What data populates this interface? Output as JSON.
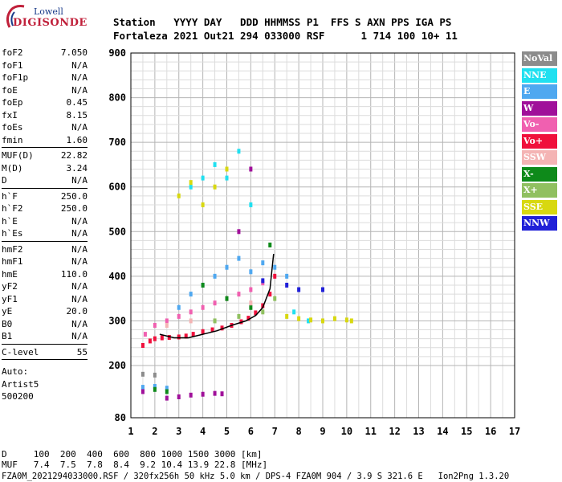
{
  "header": {
    "line1": "Station   YYYY DAY   DDD HHMMSS P1  FFS S AXN PPS IGA PS",
    "line2": "Fortaleza 2021 Out21 294 033000 RSF      1 714 100 10+ 11"
  },
  "logo": {
    "top": "Lowell",
    "bottom": "DIGISONDE"
  },
  "params_block1": [
    {
      "k": "foF2",
      "v": "7.050"
    },
    {
      "k": "foF1",
      "v": "N/A"
    },
    {
      "k": "foF1p",
      "v": "N/A"
    },
    {
      "k": "foE",
      "v": "N/A"
    },
    {
      "k": "foEp",
      "v": "0.45"
    },
    {
      "k": "fxI",
      "v": "8.15"
    },
    {
      "k": "foEs",
      "v": "N/A"
    },
    {
      "k": "fmin",
      "v": "1.60"
    }
  ],
  "params_block2": [
    {
      "k": "MUF(D)",
      "v": "22.82"
    },
    {
      "k": "M(D)",
      "v": "3.24"
    },
    {
      "k": "D",
      "v": "N/A"
    }
  ],
  "params_block3": [
    {
      "k": "h`F",
      "v": "250.0"
    },
    {
      "k": "h`F2",
      "v": "250.0"
    },
    {
      "k": "h`E",
      "v": "N/A"
    },
    {
      "k": "h`Es",
      "v": "N/A"
    }
  ],
  "params_block4": [
    {
      "k": "hmF2",
      "v": "N/A"
    },
    {
      "k": "hmF1",
      "v": "N/A"
    },
    {
      "k": "hmE",
      "v": "110.0"
    },
    {
      "k": "yF2",
      "v": "N/A"
    },
    {
      "k": "yF1",
      "v": "N/A"
    },
    {
      "k": "yE",
      "v": "20.0"
    },
    {
      "k": "B0",
      "v": "N/A"
    },
    {
      "k": "B1",
      "v": "N/A"
    }
  ],
  "params_block5": [
    {
      "k": "C-level",
      "v": "55"
    }
  ],
  "autoscale": {
    "line1": "Auto:",
    "line2": "Artist5",
    "line3": "500200"
  },
  "legend": [
    {
      "label": "NoVal",
      "color": "#8c8c8c"
    },
    {
      "label": "NNE",
      "color": "#21e0f0"
    },
    {
      "label": "E",
      "color": "#4fa8f0"
    },
    {
      "label": "W",
      "color": "#a0109a"
    },
    {
      "label": "Vo-",
      "color": "#f060b0"
    },
    {
      "label": "Vo+",
      "color": "#f0103c"
    },
    {
      "label": "SSW",
      "color": "#f4b4b4"
    },
    {
      "label": "X-",
      "color": "#0e8a1a"
    },
    {
      "label": "X+",
      "color": "#90c060"
    },
    {
      "label": "SSE",
      "color": "#d8d810"
    },
    {
      "label": "NNW",
      "color": "#2020d8"
    }
  ],
  "footer": {
    "d_line": "D     100  200  400  600  800 1000 1500 3000 [km]",
    "muf_line": "MUF   7.4  7.5  7.8  8.4  9.2 10.4 13.9 22.8 [MHz]",
    "file_line": "FZA0M_2021294033000.RSF / 320fx256h 50 kHz 5.0 km / DPS-4 FZA0M 904 / 3.9 S 321.6 E   Ion2Png 1.3.20"
  },
  "chart_data": {
    "type": "scatter",
    "title": "",
    "xlabel": "",
    "ylabel": "",
    "xlim": [
      1,
      17
    ],
    "ylim": [
      80,
      900
    ],
    "x_ticks": [
      1,
      2,
      3,
      4,
      5,
      6,
      7,
      8,
      9,
      10,
      11,
      12,
      13,
      14,
      15,
      16,
      17
    ],
    "y_ticks": [
      80,
      200,
      300,
      400,
      500,
      600,
      700,
      800,
      900
    ],
    "grid": true,
    "series": [
      {
        "name": "Vo+",
        "color": "#f0103c",
        "points": [
          [
            1.5,
            245
          ],
          [
            1.8,
            255
          ],
          [
            2.0,
            260
          ],
          [
            2.3,
            262
          ],
          [
            2.6,
            263
          ],
          [
            3.0,
            264
          ],
          [
            3.3,
            266
          ],
          [
            3.6,
            270
          ],
          [
            4.0,
            276
          ],
          [
            4.4,
            280
          ],
          [
            4.8,
            284
          ],
          [
            5.2,
            290
          ],
          [
            5.6,
            298
          ],
          [
            5.9,
            306
          ],
          [
            6.2,
            318
          ],
          [
            6.5,
            334
          ],
          [
            6.8,
            360
          ],
          [
            7.0,
            400
          ]
        ]
      },
      {
        "name": "Vo-",
        "color": "#f060b0",
        "points": [
          [
            1.6,
            270
          ],
          [
            2.0,
            290
          ],
          [
            2.5,
            300
          ],
          [
            3.0,
            310
          ],
          [
            3.5,
            320
          ],
          [
            4.0,
            330
          ],
          [
            4.5,
            340
          ],
          [
            5.0,
            350
          ],
          [
            5.5,
            360
          ],
          [
            6.0,
            370
          ],
          [
            6.5,
            385
          ]
        ]
      },
      {
        "name": "E",
        "color": "#4fa8f0",
        "points": [
          [
            1.5,
            150
          ],
          [
            2.0,
            152
          ],
          [
            2.5,
            148
          ],
          [
            3.0,
            330
          ],
          [
            3.5,
            360
          ],
          [
            4.0,
            380
          ],
          [
            4.5,
            400
          ],
          [
            5.0,
            420
          ],
          [
            5.5,
            440
          ],
          [
            6.0,
            410
          ],
          [
            6.5,
            430
          ],
          [
            7.0,
            420
          ],
          [
            7.5,
            400
          ]
        ]
      },
      {
        "name": "NNE",
        "color": "#21e0f0",
        "points": [
          [
            3.5,
            600
          ],
          [
            4.0,
            620
          ],
          [
            4.5,
            650
          ],
          [
            5.0,
            620
          ],
          [
            5.5,
            680
          ],
          [
            6.0,
            560
          ],
          [
            7.8,
            320
          ],
          [
            8.4,
            300
          ]
        ]
      },
      {
        "name": "W",
        "color": "#a0109a",
        "points": [
          [
            1.5,
            140
          ],
          [
            2.5,
            125
          ],
          [
            3.0,
            128
          ],
          [
            3.5,
            132
          ],
          [
            4.0,
            134
          ],
          [
            4.5,
            136
          ],
          [
            4.8,
            135
          ],
          [
            5.5,
            500
          ],
          [
            6.0,
            640
          ]
        ]
      },
      {
        "name": "SSE",
        "color": "#d8d810",
        "points": [
          [
            3.0,
            580
          ],
          [
            3.5,
            610
          ],
          [
            4.0,
            560
          ],
          [
            4.5,
            600
          ],
          [
            5.0,
            640
          ],
          [
            7.5,
            310
          ],
          [
            8.0,
            305
          ],
          [
            8.5,
            302
          ],
          [
            9.0,
            300
          ],
          [
            9.5,
            305
          ],
          [
            10.0,
            302
          ],
          [
            10.2,
            300
          ]
        ]
      },
      {
        "name": "X-",
        "color": "#0e8a1a",
        "points": [
          [
            2.0,
            145
          ],
          [
            2.5,
            140
          ],
          [
            4.0,
            380
          ],
          [
            5.0,
            350
          ],
          [
            6.0,
            330
          ],
          [
            6.8,
            470
          ]
        ]
      },
      {
        "name": "X+",
        "color": "#90c060",
        "points": [
          [
            4.5,
            300
          ],
          [
            5.5,
            310
          ],
          [
            6.5,
            320
          ],
          [
            7.0,
            350
          ]
        ]
      },
      {
        "name": "NNW",
        "color": "#2020d8",
        "points": [
          [
            7.5,
            380
          ],
          [
            8.0,
            370
          ],
          [
            9.0,
            370
          ],
          [
            6.5,
            390
          ]
        ]
      },
      {
        "name": "SSW",
        "color": "#f4b4b4",
        "points": [
          [
            2.5,
            290
          ],
          [
            3.5,
            300
          ],
          [
            6.0,
            340
          ]
        ]
      },
      {
        "name": "NoVal",
        "color": "#8c8c8c",
        "points": [
          [
            1.5,
            180
          ],
          [
            2.0,
            178
          ]
        ]
      }
    ],
    "trace": {
      "color": "#000000",
      "points": [
        [
          2.2,
          270
        ],
        [
          2.8,
          262
        ],
        [
          3.4,
          262
        ],
        [
          4.0,
          270
        ],
        [
          4.6,
          278
        ],
        [
          5.2,
          290
        ],
        [
          5.8,
          300
        ],
        [
          6.2,
          312
        ],
        [
          6.5,
          330
        ],
        [
          6.8,
          372
        ],
        [
          6.95,
          450
        ]
      ]
    }
  }
}
